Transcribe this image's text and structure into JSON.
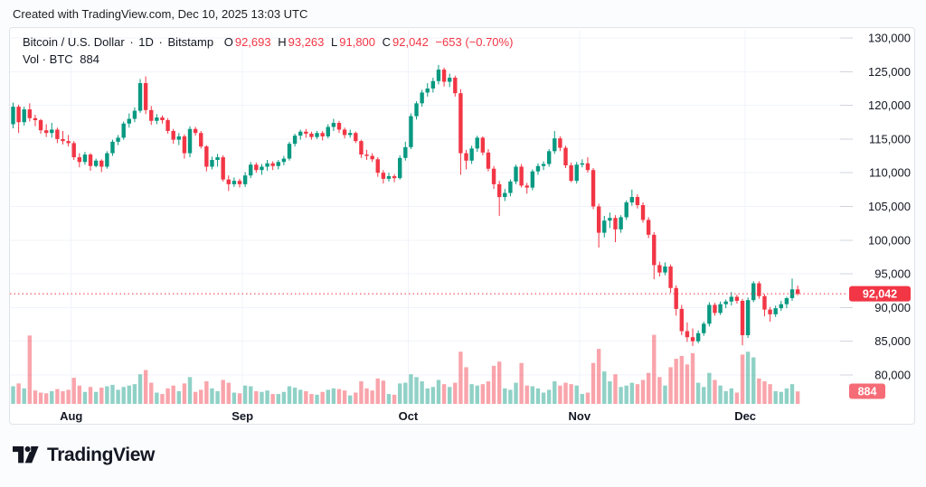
{
  "attribution": "Created with TradingView.com, Dec 10, 2025 13:03 UTC",
  "legend": {
    "symbol": "Bitcoin / U.S. Dollar",
    "sep1": "·",
    "interval": "1D",
    "sep2": "·",
    "exchange": "Bitstamp",
    "o_label": "O",
    "o_value": "92,693",
    "h_label": "H",
    "h_value": "93,263",
    "l_label": "L",
    "l_value": "91,800",
    "c_label": "C",
    "c_value": "92,042",
    "change": "−653 (−0.70%)",
    "vol_label": "Vol · BTC",
    "vol_value": "884"
  },
  "y_axis": {
    "price_badge": "92,042",
    "volume_badge": "884"
  },
  "logo_text": "TradingView",
  "colors": {
    "up": "#089981",
    "down": "#f23645",
    "vol_up": "rgba(8,153,129,0.45)",
    "vol_down": "rgba(242,54,69,0.45)",
    "grid": "#f0f3fa",
    "tick": "#d1d4dc",
    "axis_text": "#131722",
    "price_line": "#f23645",
    "price_badge_bg": "#f23645",
    "volume_badge_bg": "#f56c76",
    "badge_text": "#ffffff"
  },
  "chart_data": {
    "type": "candlestick+volume",
    "title": "Bitcoin / U.S. Dollar · 1D · Bitstamp",
    "interval": "1D",
    "start_date": "2025-07-21",
    "end_date": "2025-12-10",
    "last_price": 92042,
    "last_volume_btc": 884,
    "y_ticks": [
      80000,
      85000,
      90000,
      95000,
      100000,
      105000,
      110000,
      115000,
      120000,
      125000,
      130000
    ],
    "ylim_visible": [
      78200,
      131600
    ],
    "month_ticks": [
      [
        11,
        "Aug"
      ],
      [
        42,
        "Sep"
      ],
      [
        72,
        "Oct"
      ],
      [
        103,
        "Nov"
      ],
      [
        133,
        "Dec"
      ]
    ],
    "columns": [
      "open",
      "high",
      "low",
      "close",
      "volume_btc"
    ],
    "candles": [
      [
        117200,
        120400,
        116600,
        119800,
        1250
      ],
      [
        119800,
        120100,
        115900,
        117500,
        1450
      ],
      [
        117500,
        119800,
        117000,
        119400,
        1100
      ],
      [
        119400,
        120300,
        117600,
        118100,
        4850
      ],
      [
        118100,
        118600,
        116900,
        117800,
        950
      ],
      [
        117800,
        118000,
        115800,
        116300,
        800
      ],
      [
        116300,
        117200,
        115300,
        115900,
        750
      ],
      [
        115900,
        117400,
        115200,
        116400,
        900
      ],
      [
        116400,
        116700,
        114400,
        115000,
        1050
      ],
      [
        115000,
        116200,
        114200,
        114700,
        900
      ],
      [
        114700,
        115600,
        113900,
        114400,
        1000
      ],
      [
        114400,
        114700,
        111900,
        112300,
        1850
      ],
      [
        112300,
        112900,
        110800,
        111600,
        1300
      ],
      [
        111600,
        113100,
        111200,
        112700,
        850
      ],
      [
        112700,
        112900,
        110300,
        111000,
        1200
      ],
      [
        111000,
        112100,
        110800,
        111800,
        850
      ],
      [
        111800,
        112000,
        110100,
        110900,
        1150
      ],
      [
        110900,
        113200,
        110600,
        112900,
        1250
      ],
      [
        112900,
        114900,
        112500,
        114600,
        1350
      ],
      [
        114600,
        115600,
        114100,
        115200,
        1000
      ],
      [
        115200,
        117600,
        114900,
        117300,
        1200
      ],
      [
        117300,
        118800,
        116700,
        118000,
        1300
      ],
      [
        118000,
        119700,
        117500,
        119200,
        1400
      ],
      [
        119200,
        123900,
        118900,
        123300,
        2100
      ],
      [
        123300,
        124300,
        118700,
        119300,
        2400
      ],
      [
        119300,
        119900,
        117100,
        117700,
        1500
      ],
      [
        117700,
        118700,
        117200,
        118200,
        800
      ],
      [
        118200,
        118500,
        117300,
        117800,
        700
      ],
      [
        117800,
        118100,
        115800,
        116200,
        1100
      ],
      [
        116200,
        116500,
        114300,
        114900,
        1300
      ],
      [
        114900,
        115900,
        114100,
        115400,
        900
      ],
      [
        115400,
        115700,
        112100,
        112900,
        1450
      ],
      [
        112900,
        116900,
        112300,
        116500,
        1900
      ],
      [
        116500,
        116800,
        115500,
        115900,
        850
      ],
      [
        115900,
        116200,
        113600,
        113900,
        1000
      ],
      [
        113900,
        114100,
        110200,
        110900,
        1600
      ],
      [
        110900,
        112400,
        110500,
        111900,
        1100
      ],
      [
        111900,
        112800,
        110900,
        112300,
        900
      ],
      [
        112300,
        112600,
        108700,
        109000,
        1700
      ],
      [
        109000,
        109600,
        107300,
        108300,
        1500
      ],
      [
        108300,
        109300,
        107900,
        108800,
        800
      ],
      [
        108800,
        109100,
        107800,
        108300,
        750
      ],
      [
        108300,
        110100,
        107900,
        109600,
        1300
      ],
      [
        109600,
        111600,
        109200,
        111200,
        1250
      ],
      [
        111200,
        111500,
        110000,
        110400,
        900
      ],
      [
        110400,
        111300,
        109700,
        110900,
        850
      ],
      [
        110900,
        111900,
        110300,
        111400,
        950
      ],
      [
        111400,
        111700,
        110400,
        111000,
        700
      ],
      [
        111000,
        111900,
        110500,
        111600,
        700
      ],
      [
        111600,
        112500,
        111100,
        112100,
        850
      ],
      [
        112100,
        114600,
        111800,
        114300,
        1250
      ],
      [
        114300,
        115800,
        113900,
        115500,
        1150
      ],
      [
        115500,
        116400,
        114900,
        116100,
        1000
      ],
      [
        116100,
        116500,
        115200,
        115800,
        900
      ],
      [
        115800,
        116100,
        114900,
        115300,
        700
      ],
      [
        115300,
        116200,
        115000,
        115900,
        650
      ],
      [
        115900,
        116200,
        114800,
        115400,
        850
      ],
      [
        115400,
        117200,
        115100,
        116800,
        1000
      ],
      [
        116800,
        118000,
        116200,
        117400,
        1100
      ],
      [
        117400,
        117700,
        115900,
        116400,
        1050
      ],
      [
        116400,
        116700,
        115100,
        115600,
        950
      ],
      [
        115600,
        116400,
        115200,
        115900,
        600
      ],
      [
        115900,
        116100,
        114400,
        114700,
        800
      ],
      [
        114700,
        114900,
        112200,
        112700,
        1600
      ],
      [
        112700,
        113400,
        111900,
        112500,
        1100
      ],
      [
        112500,
        112900,
        111600,
        112000,
        950
      ],
      [
        112000,
        112300,
        109400,
        110000,
        1800
      ],
      [
        110000,
        110400,
        108400,
        109100,
        1650
      ],
      [
        109100,
        110000,
        108700,
        109500,
        700
      ],
      [
        109500,
        109800,
        108600,
        109200,
        650
      ],
      [
        109200,
        112600,
        109000,
        112200,
        1450
      ],
      [
        112200,
        114600,
        111800,
        113800,
        1500
      ],
      [
        113800,
        118800,
        113500,
        118400,
        2100
      ],
      [
        118400,
        120600,
        117900,
        120300,
        1900
      ],
      [
        120300,
        122300,
        119800,
        121900,
        1600
      ],
      [
        121900,
        123300,
        121300,
        122500,
        1100
      ],
      [
        122500,
        124100,
        121900,
        123600,
        1200
      ],
      [
        123600,
        126000,
        123100,
        125300,
        1700
      ],
      [
        125300,
        125600,
        122800,
        123500,
        1400
      ],
      [
        123500,
        124700,
        122700,
        124100,
        1200
      ],
      [
        124100,
        124400,
        121300,
        121800,
        1500
      ],
      [
        121800,
        122400,
        109700,
        112900,
        3700
      ],
      [
        112900,
        113400,
        110500,
        111800,
        2600
      ],
      [
        111800,
        114000,
        111300,
        113600,
        1400
      ],
      [
        113600,
        115500,
        113100,
        115200,
        1300
      ],
      [
        115200,
        115400,
        112600,
        113000,
        1400
      ],
      [
        113000,
        113500,
        110200,
        110600,
        1600
      ],
      [
        110600,
        111000,
        107600,
        108300,
        2700
      ],
      [
        108300,
        108800,
        103600,
        106400,
        3000
      ],
      [
        106400,
        107600,
        105800,
        107000,
        1100
      ],
      [
        107000,
        109000,
        106500,
        108700,
        1000
      ],
      [
        108700,
        111200,
        108300,
        110900,
        1500
      ],
      [
        110900,
        111300,
        107800,
        108100,
        2900
      ],
      [
        108100,
        108500,
        106900,
        107800,
        1300
      ],
      [
        107800,
        110500,
        107400,
        110200,
        1250
      ],
      [
        110200,
        111400,
        109700,
        111000,
        1100
      ],
      [
        111000,
        111700,
        110400,
        111300,
        800
      ],
      [
        111300,
        113500,
        110900,
        113200,
        1000
      ],
      [
        113200,
        116200,
        112800,
        115100,
        1600
      ],
      [
        115100,
        115400,
        113200,
        113700,
        1300
      ],
      [
        113700,
        114000,
        110700,
        111100,
        1500
      ],
      [
        111100,
        111500,
        108600,
        108800,
        1400
      ],
      [
        108800,
        111600,
        108400,
        111200,
        1300
      ],
      [
        111200,
        112000,
        110800,
        111400,
        700
      ],
      [
        111400,
        112300,
        110000,
        110400,
        800
      ],
      [
        110400,
        110700,
        104600,
        105000,
        2900
      ],
      [
        105000,
        105400,
        98900,
        101100,
        3900
      ],
      [
        101100,
        103600,
        100400,
        102900,
        2300
      ],
      [
        102900,
        104100,
        101800,
        103300,
        1600
      ],
      [
        103300,
        103700,
        99700,
        101600,
        2100
      ],
      [
        101600,
        103700,
        101100,
        103400,
        1200
      ],
      [
        103400,
        105900,
        103000,
        105600,
        1300
      ],
      [
        105600,
        107500,
        105100,
        106400,
        1500
      ],
      [
        106400,
        106800,
        104700,
        105200,
        1400
      ],
      [
        105200,
        105600,
        102600,
        103000,
        1700
      ],
      [
        103000,
        103400,
        100300,
        100800,
        2200
      ],
      [
        100800,
        101200,
        94200,
        96300,
        4900
      ],
      [
        96300,
        96800,
        94600,
        95200,
        1900
      ],
      [
        95200,
        96700,
        94800,
        96100,
        1300
      ],
      [
        96100,
        96400,
        92200,
        92900,
        2600
      ],
      [
        92900,
        93300,
        88800,
        89800,
        3200
      ],
      [
        89800,
        90400,
        85900,
        86500,
        3400
      ],
      [
        86500,
        87800,
        84900,
        85600,
        2800
      ],
      [
        85600,
        86900,
        84300,
        85000,
        3600
      ],
      [
        85000,
        86600,
        84700,
        86200,
        1500
      ],
      [
        86200,
        87900,
        85800,
        87600,
        1200
      ],
      [
        87600,
        90800,
        87200,
        90400,
        2200
      ],
      [
        90400,
        90700,
        88800,
        89200,
        1700
      ],
      [
        89200,
        90900,
        88900,
        90500,
        1300
      ],
      [
        90500,
        91200,
        89900,
        90900,
        900
      ],
      [
        90900,
        92300,
        90300,
        91600,
        1100
      ],
      [
        91600,
        91900,
        90600,
        91000,
        800
      ],
      [
        91000,
        91300,
        84400,
        85900,
        3500
      ],
      [
        85900,
        91500,
        85500,
        91100,
        3700
      ],
      [
        91100,
        93900,
        90800,
        93600,
        3300
      ],
      [
        93600,
        93900,
        91300,
        91700,
        1800
      ],
      [
        91700,
        92000,
        88700,
        89700,
        1600
      ],
      [
        89700,
        90100,
        87900,
        89000,
        1400
      ],
      [
        89000,
        90300,
        88600,
        89900,
        900
      ],
      [
        89900,
        91000,
        89500,
        90500,
        850
      ],
      [
        90500,
        91600,
        89900,
        91400,
        1100
      ],
      [
        91400,
        94300,
        91000,
        92700,
        1400
      ],
      [
        92693,
        93263,
        91800,
        92042,
        884
      ]
    ]
  }
}
